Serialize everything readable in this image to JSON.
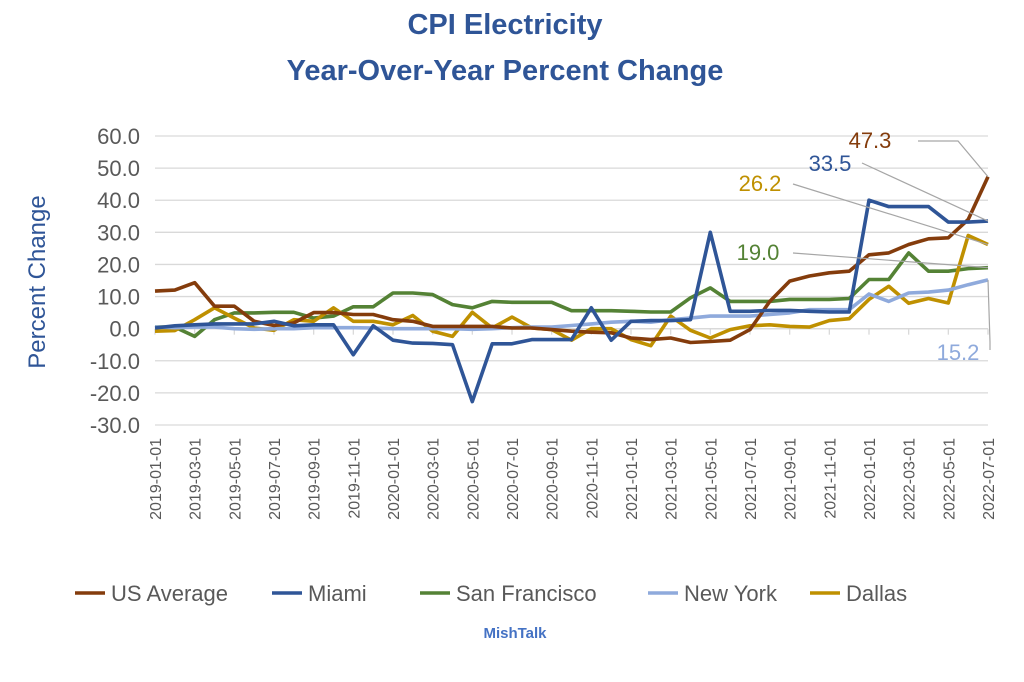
{
  "chart_data": {
    "type": "line",
    "title": "CPI Electricity",
    "subtitle": "Year-Over-Year Percent Change",
    "xlabel": "",
    "ylabel": "Percent Change",
    "ylim": [
      -30,
      60
    ],
    "yticks": [
      "60.0",
      "50.0",
      "40.0",
      "30.0",
      "20.0",
      "10.0",
      "0.0",
      "-10.0",
      "-20.0",
      "-30.0"
    ],
    "ytick_values": [
      60,
      50,
      40,
      30,
      20,
      10,
      0,
      -10,
      -20,
      -30
    ],
    "grid": true,
    "legend_position": "bottom",
    "x": [
      "2019-01-01",
      "2019-02-01",
      "2019-03-01",
      "2019-04-01",
      "2019-05-01",
      "2019-06-01",
      "2019-07-01",
      "2019-08-01",
      "2019-09-01",
      "2019-10-01",
      "2019-11-01",
      "2019-12-01",
      "2020-01-01",
      "2020-02-01",
      "2020-03-01",
      "2020-04-01",
      "2020-05-01",
      "2020-06-01",
      "2020-07-01",
      "2020-08-01",
      "2020-09-01",
      "2020-10-01",
      "2020-11-01",
      "2020-12-01",
      "2021-01-01",
      "2021-02-01",
      "2021-03-01",
      "2021-04-01",
      "2021-05-01",
      "2021-06-01",
      "2021-07-01",
      "2021-08-01",
      "2021-09-01",
      "2021-10-01",
      "2021-11-01",
      "2021-12-01",
      "2022-01-01",
      "2022-02-01",
      "2022-03-01",
      "2022-04-01",
      "2022-05-01",
      "2022-06-01",
      "2022-07-01"
    ],
    "xtick_labels": [
      "2019-01-01",
      "2019-03-01",
      "2019-05-01",
      "2019-07-01",
      "2019-09-01",
      "2019-11-01",
      "2020-01-01",
      "2020-03-01",
      "2020-05-01",
      "2020-07-01",
      "2020-09-01",
      "2020-11-01",
      "2021-01-01",
      "2021-03-01",
      "2021-05-01",
      "2021-07-01",
      "2021-09-01",
      "2021-11-01",
      "2022-01-01",
      "2022-03-01",
      "2022-05-01",
      "2022-07-01"
    ],
    "series": [
      {
        "name": "US Average",
        "color": "#843C0C",
        "end_label": "47.3",
        "values": [
          11.7,
          12,
          14.3,
          7,
          7,
          2.3,
          1,
          1.8,
          5,
          5,
          4.4,
          4.4,
          2.8,
          2.3,
          0.7,
          0.7,
          0.7,
          0.7,
          0.2,
          0.2,
          -0.3,
          -0.8,
          -1.1,
          -1.3,
          -2.9,
          -3.4,
          -2.9,
          -4.3,
          -4,
          -3.6,
          -0.3,
          8.5,
          14.8,
          16.4,
          17.4,
          17.9,
          23,
          23.6,
          26.2,
          28,
          28.3,
          34,
          47.3
        ]
      },
      {
        "name": "Miami",
        "color": "#2F5597",
        "end_label": "33.5",
        "values": [
          0.2,
          0.9,
          1.2,
          1.5,
          1.5,
          1.5,
          2.3,
          0.9,
          1.2,
          1.2,
          -8.1,
          0.9,
          -3.6,
          -4.5,
          -4.6,
          -5,
          -22.7,
          -4.7,
          -4.7,
          -3.4,
          -3.4,
          -3.4,
          6.5,
          -3.6,
          2.3,
          2.5,
          2.5,
          2.8,
          30,
          5.4,
          5.4,
          5.7,
          5.7,
          5.4,
          5.2,
          5.2,
          40,
          38,
          38,
          38,
          33.2,
          33.2,
          33.5
        ]
      },
      {
        "name": "San Francisco",
        "color": "#548235",
        "end_label": "19.0",
        "values": [
          0.5,
          0.5,
          -2.4,
          2.8,
          4.9,
          4.9,
          5.1,
          5.1,
          3.3,
          3.9,
          6.8,
          6.8,
          11.1,
          11.1,
          10.6,
          7.5,
          6.5,
          8.5,
          8.2,
          8.2,
          8.2,
          5.6,
          5.6,
          5.6,
          5.4,
          5.2,
          5.2,
          9.6,
          12.7,
          8.5,
          8.5,
          8.5,
          9.1,
          9.1,
          9.1,
          9.4,
          15.3,
          15.3,
          23.6,
          17.9,
          17.9,
          18.7,
          19.0
        ]
      },
      {
        "name": "New York",
        "color": "#8FAADC",
        "end_label": "15.2",
        "values": [
          0.5,
          0.3,
          0.5,
          0.5,
          0,
          -0.2,
          0,
          0,
          0.3,
          0.3,
          0.3,
          0.2,
          0,
          0,
          0,
          0,
          -0.2,
          0,
          0.3,
          0.5,
          0.5,
          1,
          1.5,
          2,
          2.3,
          2,
          2.8,
          3.3,
          3.9,
          3.9,
          3.9,
          4.4,
          4.9,
          5.9,
          5.9,
          5.9,
          10.8,
          8.5,
          11.1,
          11.4,
          12,
          13.7,
          15.2
        ]
      },
      {
        "name": "Dallas",
        "color": "#BF9000",
        "end_label": "26.2",
        "values": [
          -0.8,
          -0.6,
          2.8,
          6.5,
          3.3,
          0.2,
          -0.5,
          2.8,
          2.3,
          6.5,
          2.3,
          2.3,
          1.2,
          4.1,
          -0.8,
          -2.4,
          5.1,
          0.2,
          3.6,
          0.2,
          -0.3,
          -3.6,
          0,
          0,
          -3.4,
          -5.3,
          3.9,
          -0.5,
          -2.9,
          -0.3,
          0.9,
          1.2,
          0.7,
          0.5,
          2.5,
          3.1,
          9.1,
          13.2,
          7.9,
          9.4,
          8,
          29,
          26.2
        ]
      }
    ]
  },
  "credit": "MishTalk"
}
